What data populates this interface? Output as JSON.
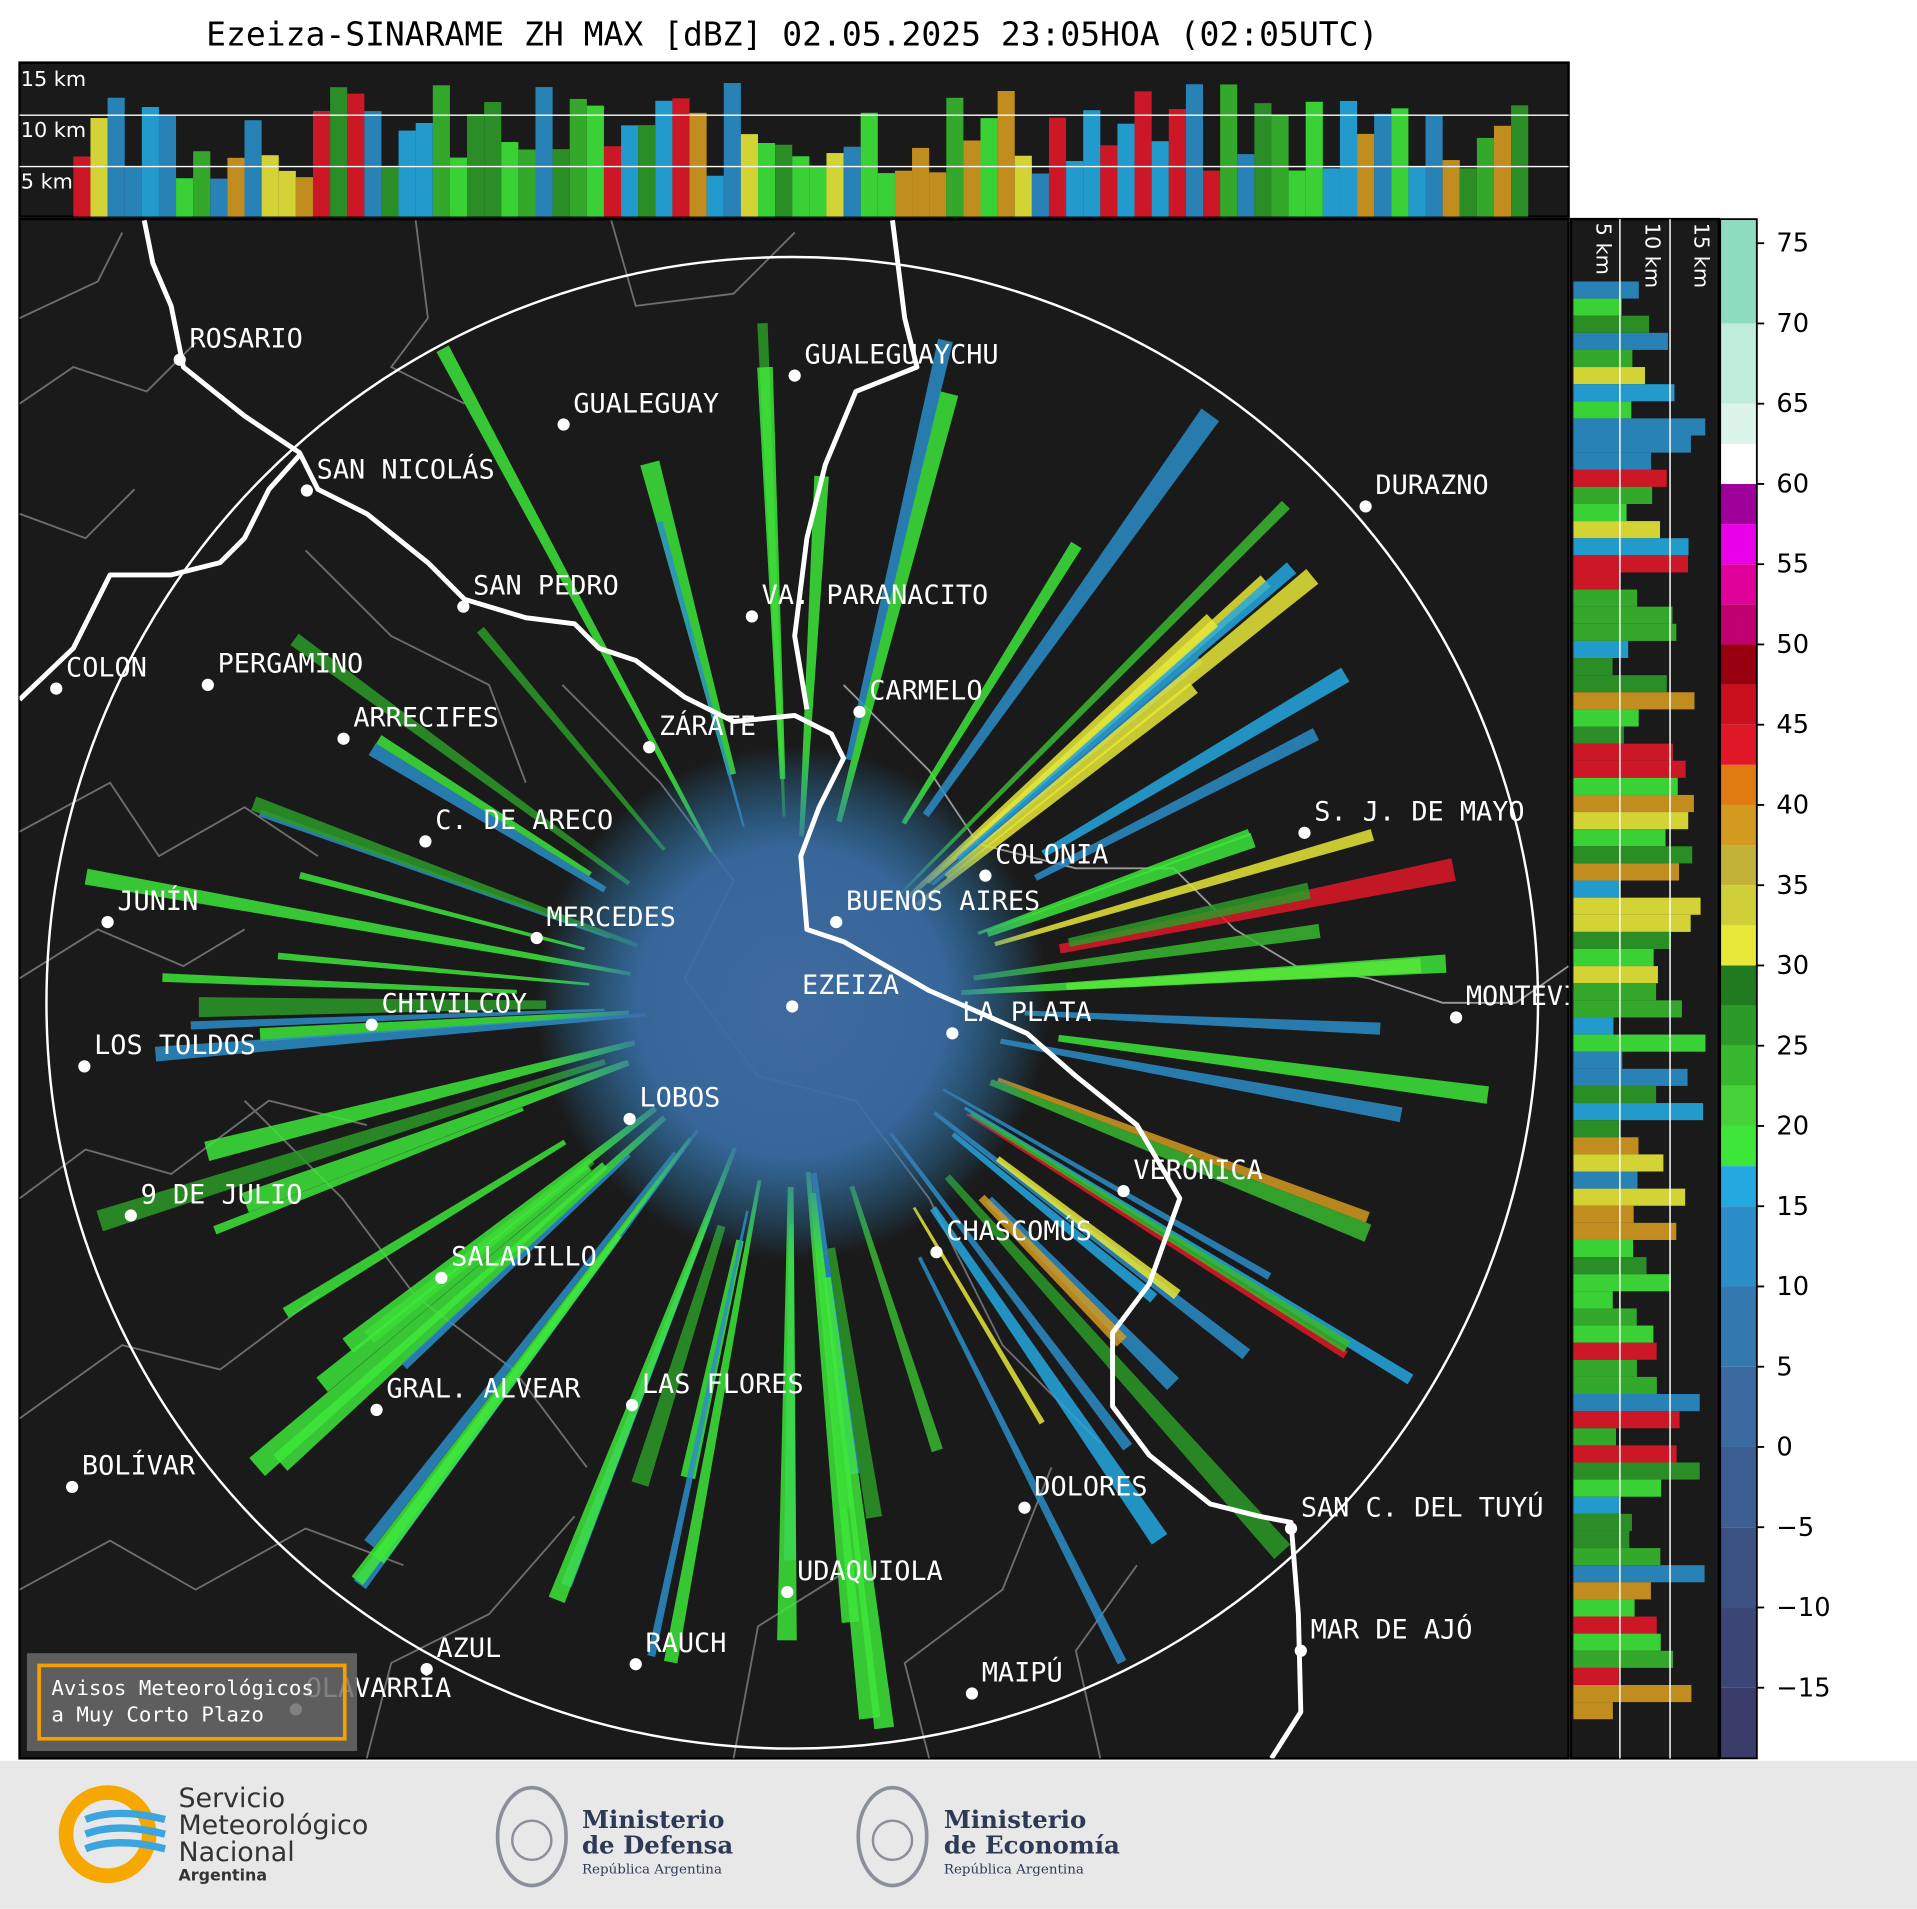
{
  "title": "Ezeiza-SINARAME ZH MAX [dBZ] 02.05.2025 23:05HOA (02:05UTC)",
  "top_panel": {
    "height_labels": [
      "15 km",
      "10 km",
      "5 km"
    ]
  },
  "side_panel": {
    "height_labels": [
      "5 km",
      "10 km",
      "15 km"
    ]
  },
  "cities": [
    "ROSARIO",
    "GUALEGUAYCHU",
    "GUALEGUAY",
    "SAN NICOLÁS",
    "DURAZNO",
    "SAN PEDRO",
    "VA. PARANACITO",
    "COLON",
    "PERGAMINO",
    "CARMELO",
    "ARRECIFES",
    "ZÁRATE",
    "S. J. DE MAYO",
    "C. DE ARECO",
    "COLONIA",
    "BUENOS AIRES",
    "JUNÍN",
    "MERCEDES",
    "EZEIZA",
    "MONTEVIDEO",
    "LA PLATA",
    "CHIVILCOY",
    "LOS TOLDOS",
    "LOBOS",
    "VERÓNICA",
    "9 DE JULIO",
    "CHASCOMÚS",
    "SALADILLO",
    "GRAL. ALVEAR",
    "LAS FLORES",
    "BOLÍVAR",
    "DOLORES",
    "SAN C. DEL TUYÚ",
    "UDAQUIOLA",
    "MAR DE AJÓ",
    "AZUL",
    "RAUCH",
    "OLAVARRÍA",
    "MAIPÚ"
  ],
  "colorbar": {
    "lim": [
      -19.4,
      76.5
    ],
    "ticks": [
      75,
      70,
      65,
      60,
      55,
      50,
      45,
      40,
      35,
      30,
      25,
      20,
      15,
      10,
      5,
      0,
      {
        "value": -5,
        "label": "−5"
      },
      {
        "value": -10,
        "label": "−10"
      },
      {
        "value": -15,
        "label": "−15"
      }
    ],
    "bounds": [
      -19.4,
      -15,
      -10,
      -5,
      0,
      5,
      10,
      15,
      17.5,
      20,
      22.5,
      25,
      27.5,
      30,
      32.5,
      35,
      37.5,
      40,
      42.5,
      45,
      47.5,
      50,
      52.5,
      55,
      57.5,
      60,
      62.5,
      65,
      70,
      76.5
    ],
    "colors": [
      "#3a3d6a",
      "#3b4677",
      "#3c5285",
      "#3c5e93",
      "#3b6aa0",
      "#3478b0",
      "#2b8ec8",
      "#24a8e0",
      "#3ee63a",
      "#48d23a",
      "#37b82e",
      "#2c9a28",
      "#227a20",
      "#e8e838",
      "#cfcf3a",
      "#c2b238",
      "#d49a20",
      "#e07b12",
      "#e01828",
      "#c8101e",
      "#980010",
      "#c00070",
      "#e0009a",
      "#e800e8",
      "#a0009a",
      "#ffffff",
      "#dcf4ea",
      "#c0ecdc",
      "#8ddcc0"
    ]
  },
  "warning_box": {
    "lines": [
      "Avisos Meteorológicos",
      "a Muy Corto Plazo"
    ]
  },
  "footer": {
    "smn": [
      "Servicio",
      "Meteorológico",
      "Nacional",
      "Argentina"
    ],
    "defensa": [
      "Ministerio",
      "de Defensa",
      "República Argentina"
    ],
    "economia": [
      "Ministerio",
      "de Economía",
      "República Argentina"
    ]
  }
}
